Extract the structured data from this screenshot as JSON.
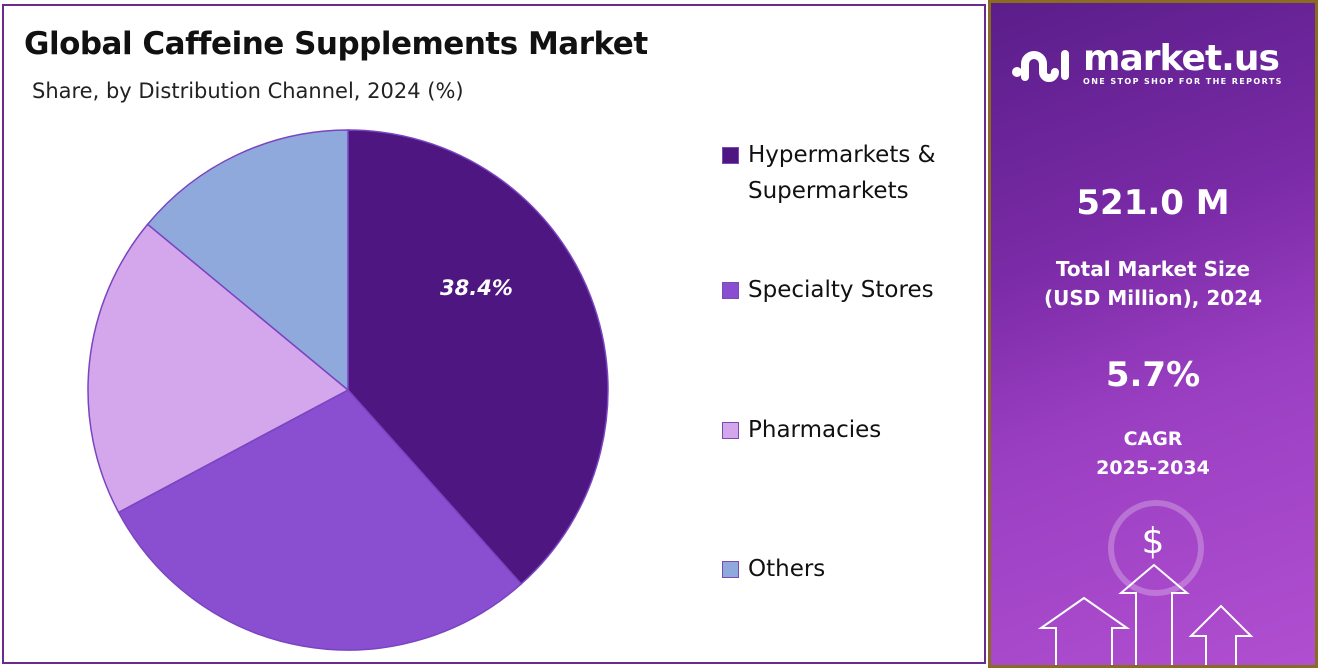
{
  "chart_data": {
    "type": "pie",
    "title": "Global Caffeine Supplements Market",
    "subtitle": "Share, by Distribution Channel, 2024 (%)",
    "categories": [
      "Hypermarkets & Supermarkets",
      "Specialty Stores",
      "Pharmacies",
      "Others"
    ],
    "values": [
      38.4,
      28.8,
      18.8,
      14.0
    ],
    "colors": [
      "#4e1680",
      "#8a4fd0",
      "#d4a6ec",
      "#8fa9dc"
    ],
    "data_labels": [
      "38.4%",
      "",
      "",
      ""
    ],
    "legend_position": "right"
  },
  "legend": {
    "items": [
      {
        "label_line1": "Hypermarkets &",
        "label_line2": "Supermarkets",
        "color": "#4e1680"
      },
      {
        "label_line1": "Specialty Stores",
        "color": "#8a4fd0"
      },
      {
        "label_line1": "Pharmacies",
        "color": "#d4a6ec"
      },
      {
        "label_line1": "Others",
        "color": "#8fa9dc"
      }
    ]
  },
  "sidebar": {
    "logo_name": "market.us",
    "logo_tagline": "ONE STOP SHOP FOR THE REPORTS",
    "market_size": "521.0 M",
    "market_size_label_1": "Total Market Size",
    "market_size_label_2": "(USD Million), 2024",
    "cagr": "5.7%",
    "cagr_label_1": "CAGR",
    "cagr_label_2": "2025-2034",
    "dollar_symbol": "$"
  }
}
